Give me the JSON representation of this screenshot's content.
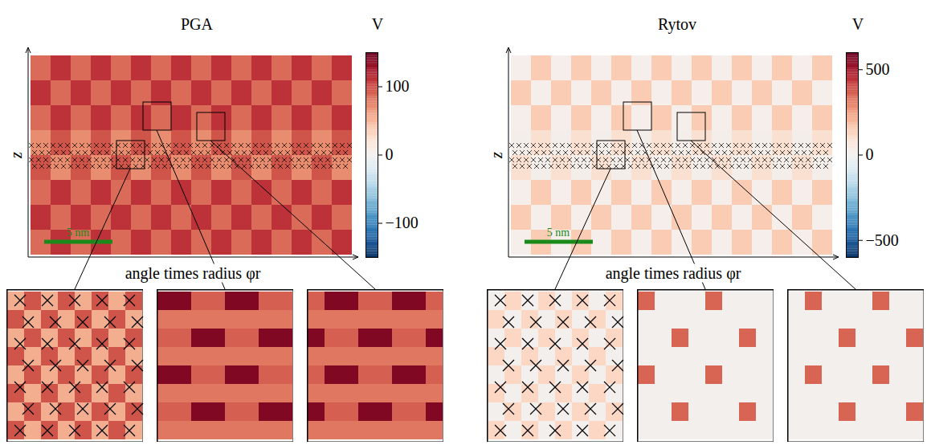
{
  "chart_data": [
    {
      "type": "heatmap",
      "title": "PGA",
      "x_label": "angle times radius φr",
      "y_label": "z",
      "tick_labels": false,
      "scale_bar": "5 nm",
      "colorbar": {
        "label": "V",
        "range": [
          -150,
          150
        ],
        "ticks": [
          -100,
          0,
          100
        ]
      },
      "cells": [
        [
          85,
          110,
          85,
          110,
          85,
          110,
          85,
          110,
          85,
          110,
          85,
          110,
          85,
          110,
          85,
          110
        ],
        [
          110,
          85,
          110,
          85,
          110,
          85,
          110,
          85,
          110,
          85,
          110,
          85,
          110,
          85,
          110,
          85
        ],
        [
          85,
          110,
          85,
          110,
          85,
          110,
          85,
          110,
          85,
          110,
          85,
          110,
          85,
          110,
          85,
          110
        ],
        [
          70,
          95,
          70,
          95,
          70,
          95,
          70,
          95,
          70,
          95,
          70,
          95,
          70,
          95,
          70,
          95
        ],
        [
          95,
          70,
          95,
          70,
          95,
          70,
          95,
          70,
          95,
          70,
          95,
          70,
          95,
          70,
          95,
          70
        ],
        [
          85,
          110,
          85,
          110,
          85,
          110,
          85,
          110,
          85,
          110,
          85,
          110,
          85,
          110,
          85,
          110
        ],
        [
          110,
          85,
          110,
          85,
          110,
          85,
          110,
          85,
          110,
          85,
          110,
          85,
          110,
          85,
          110,
          85
        ],
        [
          85,
          110,
          85,
          110,
          85,
          110,
          85,
          110,
          85,
          110,
          85,
          110,
          85,
          110,
          85,
          110
        ]
      ],
      "insets": [
        {
          "cells": [
            [
              55,
              95,
              55,
              95,
              55,
              95,
              55,
              95
            ],
            [
              95,
              55,
              95,
              55,
              95,
              55,
              95,
              55
            ],
            [
              55,
              95,
              55,
              95,
              55,
              95,
              55,
              95
            ],
            [
              95,
              55,
              95,
              55,
              95,
              55,
              95,
              55
            ],
            [
              55,
              95,
              55,
              95,
              55,
              95,
              55,
              95
            ],
            [
              95,
              55,
              95,
              55,
              95,
              55,
              95,
              55
            ],
            [
              55,
              95,
              55,
              95,
              55,
              95,
              55,
              95
            ],
            [
              95,
              55,
              95,
              55,
              95,
              55,
              95,
              55
            ]
          ]
        },
        {
          "cells": [
            [
              140,
              140,
              90,
              90,
              140,
              140,
              90,
              90
            ],
            [
              80,
              80,
              80,
              80,
              80,
              80,
              80,
              80
            ],
            [
              90,
              90,
              140,
              140,
              90,
              90,
              140,
              140
            ],
            [
              80,
              80,
              80,
              80,
              80,
              80,
              80,
              80
            ],
            [
              140,
              140,
              90,
              90,
              140,
              140,
              90,
              90
            ],
            [
              80,
              80,
              80,
              80,
              80,
              80,
              80,
              80
            ],
            [
              90,
              90,
              140,
              140,
              90,
              90,
              140,
              140
            ],
            [
              80,
              80,
              80,
              80,
              80,
              80,
              80,
              80
            ]
          ]
        },
        {
          "cells": [
            [
              90,
              140,
              140,
              90,
              90,
              140,
              140,
              90
            ],
            [
              80,
              80,
              80,
              80,
              80,
              80,
              80,
              80
            ],
            [
              140,
              90,
              90,
              140,
              140,
              90,
              90,
              140
            ],
            [
              80,
              80,
              80,
              80,
              80,
              80,
              80,
              80
            ],
            [
              90,
              140,
              140,
              90,
              90,
              140,
              140,
              90
            ],
            [
              80,
              80,
              80,
              80,
              80,
              80,
              80,
              80
            ],
            [
              140,
              90,
              90,
              140,
              140,
              90,
              90,
              140
            ],
            [
              80,
              80,
              80,
              80,
              80,
              80,
              80,
              80
            ]
          ]
        }
      ]
    },
    {
      "type": "heatmap",
      "title": "Rytov",
      "x_label": "angle times radius φr",
      "y_label": "z",
      "tick_labels": false,
      "scale_bar": "5 nm",
      "colorbar": {
        "label": "V",
        "range": [
          -600,
          600
        ],
        "ticks": [
          -500,
          0,
          500
        ]
      },
      "cells": [
        [
          20,
          150,
          20,
          150,
          20,
          150,
          20,
          150,
          20,
          150,
          20,
          150,
          20,
          150,
          20,
          150
        ],
        [
          150,
          20,
          150,
          20,
          150,
          20,
          150,
          20,
          150,
          20,
          150,
          20,
          150,
          20,
          150,
          20
        ],
        [
          20,
          150,
          20,
          150,
          20,
          150,
          20,
          150,
          20,
          150,
          20,
          150,
          20,
          150,
          20,
          150
        ],
        [
          15,
          90,
          15,
          90,
          15,
          90,
          15,
          90,
          15,
          90,
          15,
          90,
          15,
          90,
          15,
          90
        ],
        [
          90,
          15,
          90,
          15,
          90,
          15,
          90,
          15,
          90,
          15,
          90,
          15,
          90,
          15,
          90,
          15
        ],
        [
          20,
          150,
          20,
          150,
          20,
          150,
          20,
          150,
          20,
          150,
          20,
          150,
          20,
          150,
          20,
          150
        ],
        [
          150,
          20,
          150,
          20,
          150,
          20,
          150,
          20,
          150,
          20,
          150,
          20,
          150,
          20,
          150,
          20
        ],
        [
          20,
          150,
          20,
          150,
          20,
          150,
          20,
          150,
          20,
          150,
          20,
          150,
          20,
          150,
          20,
          150
        ]
      ],
      "insets": [
        {
          "cells": [
            [
              10,
              120,
              10,
              120,
              10,
              120,
              10,
              120
            ],
            [
              120,
              10,
              120,
              10,
              120,
              10,
              120,
              10
            ],
            [
              10,
              120,
              10,
              120,
              10,
              120,
              10,
              120
            ],
            [
              120,
              10,
              120,
              10,
              120,
              10,
              120,
              10
            ],
            [
              10,
              120,
              10,
              120,
              10,
              120,
              10,
              120
            ],
            [
              120,
              10,
              120,
              10,
              120,
              10,
              120,
              10
            ],
            [
              10,
              120,
              10,
              120,
              10,
              120,
              10,
              120
            ],
            [
              120,
              10,
              120,
              10,
              120,
              10,
              120,
              10
            ]
          ]
        },
        {
          "cells": [
            [
              350,
              10,
              10,
              10,
              350,
              10,
              10,
              10
            ],
            [
              10,
              10,
              10,
              10,
              10,
              10,
              10,
              10
            ],
            [
              10,
              10,
              350,
              10,
              10,
              10,
              350,
              10
            ],
            [
              10,
              10,
              10,
              10,
              10,
              10,
              10,
              10
            ],
            [
              350,
              10,
              10,
              10,
              350,
              10,
              10,
              10
            ],
            [
              10,
              10,
              10,
              10,
              10,
              10,
              10,
              10
            ],
            [
              10,
              10,
              350,
              10,
              10,
              10,
              350,
              10
            ],
            [
              10,
              10,
              10,
              10,
              10,
              10,
              10,
              10
            ]
          ]
        },
        {
          "cells": [
            [
              10,
              350,
              10,
              10,
              10,
              350,
              10,
              10
            ],
            [
              10,
              10,
              10,
              10,
              10,
              10,
              10,
              10
            ],
            [
              10,
              10,
              10,
              350,
              10,
              10,
              10,
              350
            ],
            [
              10,
              10,
              10,
              10,
              10,
              10,
              10,
              10
            ],
            [
              10,
              350,
              10,
              10,
              10,
              350,
              10,
              10
            ],
            [
              10,
              10,
              10,
              10,
              10,
              10,
              10,
              10
            ],
            [
              10,
              10,
              10,
              350,
              10,
              10,
              10,
              350
            ],
            [
              10,
              10,
              10,
              10,
              10,
              10,
              10,
              10
            ]
          ]
        }
      ]
    }
  ]
}
